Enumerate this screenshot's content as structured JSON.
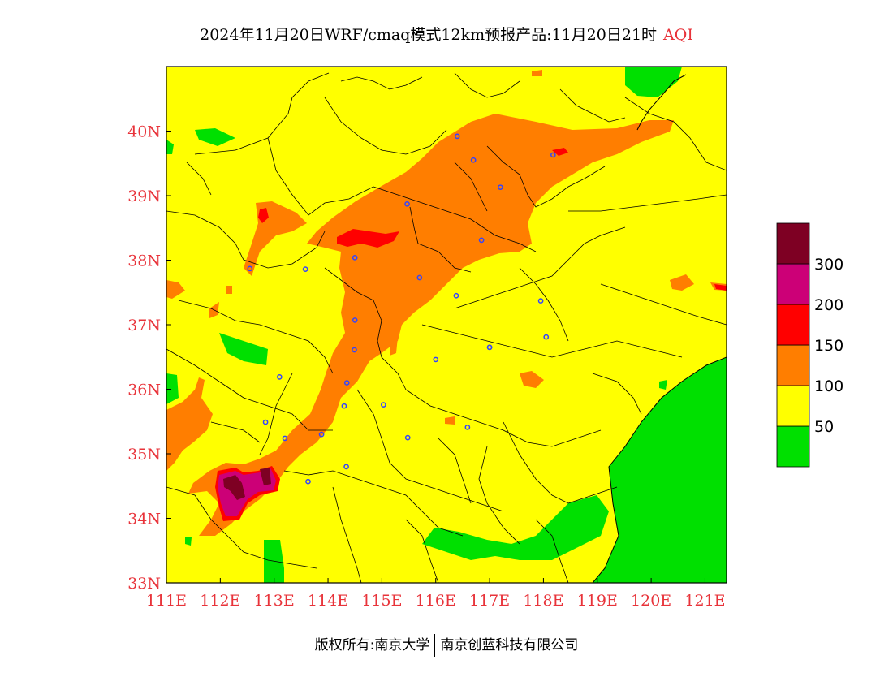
{
  "title": {
    "text": "2024年11月20日WRF/cmaq模式12km预报产品:11月20日21时",
    "unit": "AQI"
  },
  "map": {
    "lon_range": [
      111,
      121.4
    ],
    "lat_range": [
      33,
      41
    ],
    "lon_ticks": [
      "111E",
      "112E",
      "113E",
      "114E",
      "115E",
      "116E",
      "117E",
      "118E",
      "119E",
      "120E",
      "121E"
    ],
    "lat_ticks": [
      "33N",
      "34N",
      "35N",
      "36N",
      "37N",
      "38N",
      "39N",
      "40N"
    ],
    "city_markers": [
      [
        116.4,
        39.92
      ],
      [
        116.7,
        39.55
      ],
      [
        117.2,
        39.13
      ],
      [
        118.18,
        39.63
      ],
      [
        115.47,
        38.87
      ],
      [
        116.85,
        38.31
      ],
      [
        114.5,
        38.04
      ],
      [
        113.58,
        37.86
      ],
      [
        112.55,
        37.87
      ],
      [
        115.7,
        37.73
      ],
      [
        116.38,
        37.45
      ],
      [
        117.0,
        36.65
      ],
      [
        114.5,
        37.07
      ],
      [
        114.49,
        36.61
      ],
      [
        113.1,
        36.19
      ],
      [
        114.35,
        36.1
      ],
      [
        116.0,
        36.46
      ],
      [
        114.3,
        35.74
      ],
      [
        115.03,
        35.76
      ],
      [
        117.95,
        37.37
      ],
      [
        118.05,
        36.81
      ],
      [
        112.84,
        35.49
      ],
      [
        113.2,
        35.24
      ],
      [
        113.88,
        35.3
      ],
      [
        115.48,
        35.25
      ],
      [
        116.59,
        35.41
      ],
      [
        114.34,
        34.8
      ],
      [
        113.63,
        34.57
      ],
      [
        117.0,
        36.65
      ]
    ]
  },
  "legend": {
    "bins": [
      {
        "color": "#00e000",
        "label": "50"
      },
      {
        "color": "#ffff00",
        "label": "100"
      },
      {
        "color": "#ff7e00",
        "label": "150"
      },
      {
        "color": "#ff0000",
        "label": "200"
      },
      {
        "color": "#cc0077",
        "label": "300"
      },
      {
        "color": "#7e0023",
        "label": ""
      }
    ]
  },
  "colors": {
    "good": "#00e000",
    "moderate": "#ffff00",
    "usg": "#ff7e00",
    "unhealthy": "#ff0000",
    "very_unhealthy": "#cc0077",
    "hazardous": "#7e0023",
    "tick_text": "#e8333a",
    "marker": "#3344ff"
  },
  "copyright": {
    "label": "版权所有:",
    "org1": "南京大学",
    "org2": "南京创蓝科技有限公司"
  }
}
